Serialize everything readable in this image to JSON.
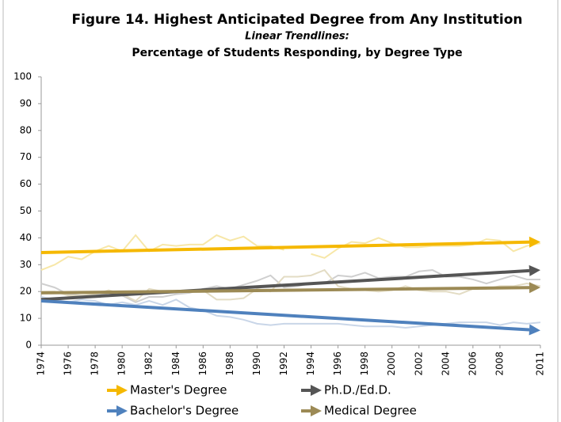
{
  "chart_data": {
    "type": "line",
    "title": "Figure 14.  Highest Anticipated Degree from Any Institution",
    "subtitle": "Linear Trendlines:",
    "subtitle2": "Percentage of Students Responding, by Degree Type",
    "x": [
      1974,
      1975,
      1976,
      1977,
      1978,
      1979,
      1980,
      1981,
      1982,
      1983,
      1984,
      1985,
      1986,
      1987,
      1988,
      1989,
      1990,
      1991,
      1992,
      1993,
      1994,
      1995,
      1996,
      1997,
      1998,
      1999,
      2000,
      2001,
      2002,
      2003,
      2004,
      2005,
      2006,
      2007,
      2008,
      2009,
      2010,
      2011
    ],
    "xlim": [
      1974,
      2011
    ],
    "xticks": [
      1974,
      1976,
      1978,
      1980,
      1982,
      1984,
      1986,
      1988,
      1990,
      1992,
      1994,
      1996,
      1998,
      2000,
      2002,
      2004,
      2006,
      2008,
      2011
    ],
    "ylim": [
      0,
      100
    ],
    "yticks": [
      0,
      10,
      20,
      30,
      40,
      50,
      60,
      70,
      80,
      90,
      100
    ],
    "series": [
      {
        "name": "Master's Degree",
        "color": "#f5b800",
        "data_color": "#f7e7a8",
        "values": [
          28,
          30,
          33,
          32,
          35,
          37,
          35,
          41,
          35,
          37.5,
          37,
          37.5,
          37.5,
          41,
          39,
          40.5,
          37,
          37,
          35.5,
          null,
          34,
          32.5,
          36,
          38.5,
          38,
          40,
          38,
          36.5,
          36.5,
          37,
          37,
          37,
          37.5,
          39.5,
          39,
          35,
          37,
          38
        ],
        "trend": [
          34.5,
          38.5
        ]
      },
      {
        "name": "Ph.D./Ed.D.",
        "color": "#555555",
        "data_color": "#cfcfcf",
        "values": [
          23,
          21.5,
          19,
          18.5,
          18.5,
          19.5,
          18.5,
          16,
          18,
          18,
          19,
          19.5,
          21,
          22,
          21,
          22.5,
          24,
          26,
          21.5,
          22,
          23,
          23,
          26,
          25.5,
          27,
          25,
          25.5,
          25.5,
          27.5,
          28,
          25.5,
          25.5,
          24.5,
          23,
          24.5,
          26,
          24.5,
          24.5
        ],
        "trend": [
          17,
          28
        ]
      },
      {
        "name": "Bachelor's Degree",
        "color": "#4f81bd",
        "data_color": "#c9d6e8",
        "values": [
          18,
          17,
          16,
          17,
          16.5,
          15,
          16,
          15,
          16.5,
          15,
          17,
          14,
          13,
          11,
          10.5,
          9.5,
          8,
          7.5,
          8,
          8,
          8,
          8,
          8,
          7.5,
          7,
          7,
          7,
          6.5,
          7,
          7.5,
          8,
          8.5,
          8.5,
          8.5,
          7.5,
          8.5,
          8,
          8.5
        ],
        "trend": [
          16.5,
          5.5
        ]
      },
      {
        "name": "Medical Degree",
        "color": "#9c8a55",
        "data_color": "#e3dcc4",
        "values": [
          20,
          20,
          18.5,
          18.5,
          19,
          20.5,
          19,
          16.5,
          21,
          20,
          20,
          20,
          20.5,
          17,
          17,
          17.5,
          21,
          20,
          25.5,
          25.5,
          26,
          28,
          22,
          21,
          20.5,
          20,
          20.5,
          22,
          20.5,
          20,
          20,
          19,
          21,
          21,
          22,
          22,
          23,
          22
        ],
        "trend": [
          19.5,
          21.5
        ]
      }
    ]
  }
}
